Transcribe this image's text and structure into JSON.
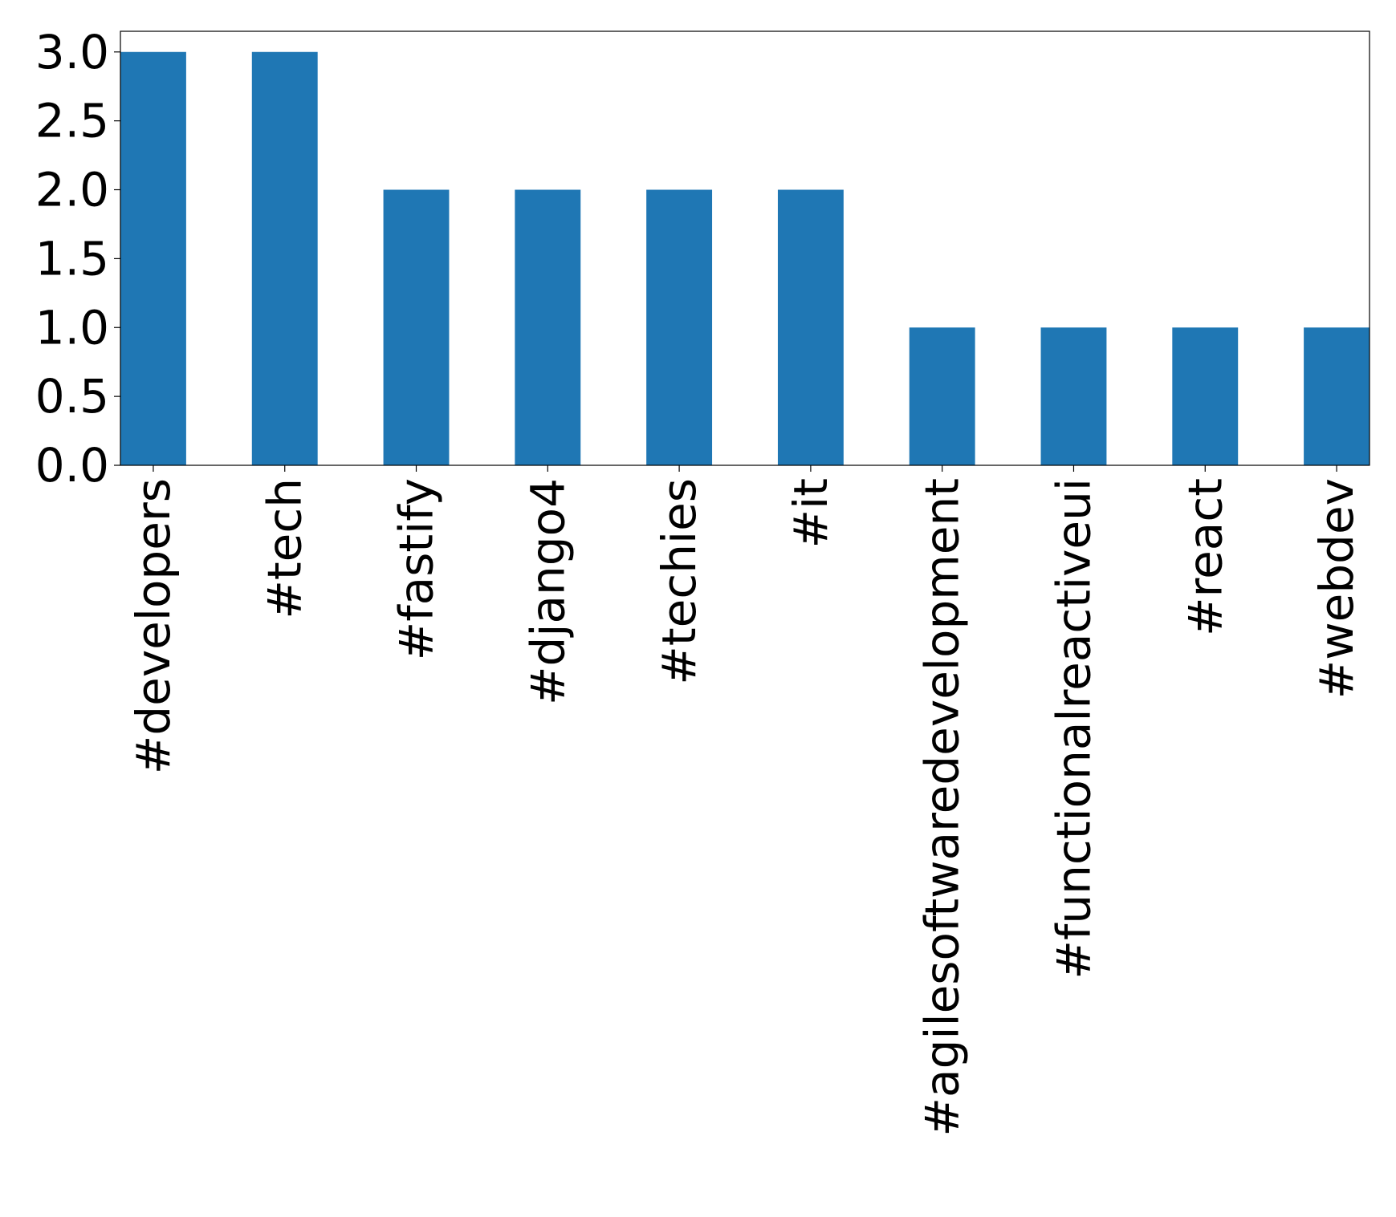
{
  "chart_data": {
    "type": "bar",
    "title": "",
    "xlabel": "",
    "ylabel": "",
    "categories": [
      "#developers",
      "#tech",
      "#fastify",
      "#django4",
      "#techies",
      "#it",
      "#agilesoftwaredevelopment",
      "#functionalreactiveui",
      "#react",
      "#webdev"
    ],
    "values": [
      3,
      3,
      2,
      2,
      2,
      2,
      1,
      1,
      1,
      1
    ],
    "ylim": [
      0,
      3.15
    ],
    "yticks": [
      0.0,
      0.5,
      1.0,
      1.5,
      2.0,
      2.5,
      3.0
    ],
    "ytick_labels": [
      "0.0",
      "0.5",
      "1.0",
      "1.5",
      "2.0",
      "2.5",
      "3.0"
    ],
    "grid": false,
    "legend": "none",
    "bar_color": "#1f77b4"
  }
}
